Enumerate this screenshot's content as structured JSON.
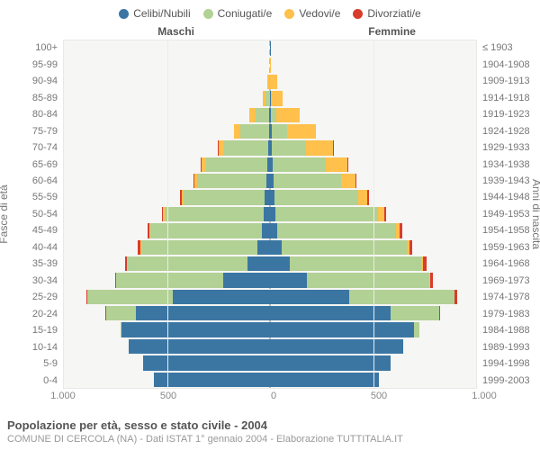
{
  "legend": [
    {
      "label": "Celibi/Nubili",
      "color": "#3b76a3"
    },
    {
      "label": "Coniugati/e",
      "color": "#b2d194"
    },
    {
      "label": "Vedovi/e",
      "color": "#ffc04c"
    },
    {
      "label": "Divorziati/e",
      "color": "#d73c2c"
    }
  ],
  "header_male": "Maschi",
  "header_female": "Femmine",
  "left_axis_title": "Fasce di età",
  "right_axis_title": "Anni di nascita",
  "footer_title": "Popolazione per età, sesso e stato civile - 2004",
  "footer_sub": "COMUNE DI CERCOLA (NA) - Dati ISTAT 1° gennaio 2004 - Elaborazione TUTTITALIA.IT",
  "colors": {
    "plot_bg": "#f6f6f4",
    "grid": "#ececea",
    "center": "#bdbdbd",
    "celibi": "#3b76a3",
    "coniugati": "#b2d194",
    "vedovi": "#ffc04c",
    "divorziati": "#d73c2c"
  },
  "x_max": 1000,
  "x_ticks": [
    1000,
    500,
    0,
    500,
    1000
  ],
  "x_tick_labels": [
    "1.000",
    "500",
    "0",
    "500",
    "1.000"
  ],
  "age_labels": [
    "100+",
    "95-99",
    "90-94",
    "85-89",
    "80-84",
    "75-79",
    "70-74",
    "65-69",
    "60-64",
    "55-59",
    "50-54",
    "45-49",
    "40-44",
    "35-39",
    "30-34",
    "25-29",
    "20-24",
    "15-19",
    "10-14",
    "5-9",
    "0-4"
  ],
  "year_labels": [
    "≤ 1903",
    "1904-1908",
    "1909-1913",
    "1914-1918",
    "1919-1923",
    "1924-1928",
    "1929-1933",
    "1934-1938",
    "1939-1943",
    "1944-1948",
    "1949-1953",
    "1954-1958",
    "1959-1963",
    "1964-1968",
    "1969-1973",
    "1974-1978",
    "1979-1983",
    "1984-1988",
    "1989-1993",
    "1994-1998",
    "1999-2003"
  ],
  "male": [
    {
      "c": 0,
      "m": 0,
      "w": 0,
      "d": 0
    },
    {
      "c": 2,
      "m": 0,
      "w": 0,
      "d": 0
    },
    {
      "c": 0,
      "m": 5,
      "w": 10,
      "d": 0
    },
    {
      "c": 0,
      "m": 20,
      "w": 15,
      "d": 0
    },
    {
      "c": 5,
      "m": 65,
      "w": 30,
      "d": 0
    },
    {
      "c": 5,
      "m": 140,
      "w": 30,
      "d": 0
    },
    {
      "c": 8,
      "m": 215,
      "w": 25,
      "d": 5
    },
    {
      "c": 12,
      "m": 300,
      "w": 20,
      "d": 5
    },
    {
      "c": 18,
      "m": 335,
      "w": 12,
      "d": 5
    },
    {
      "c": 25,
      "m": 395,
      "w": 10,
      "d": 8
    },
    {
      "c": 30,
      "m": 480,
      "w": 8,
      "d": 8
    },
    {
      "c": 40,
      "m": 540,
      "w": 5,
      "d": 10
    },
    {
      "c": 60,
      "m": 565,
      "w": 5,
      "d": 10
    },
    {
      "c": 110,
      "m": 580,
      "w": 3,
      "d": 10
    },
    {
      "c": 225,
      "m": 520,
      "w": 0,
      "d": 8
    },
    {
      "c": 470,
      "m": 415,
      "w": 0,
      "d": 8
    },
    {
      "c": 650,
      "m": 145,
      "w": 0,
      "d": 3
    },
    {
      "c": 720,
      "m": 5,
      "w": 0,
      "d": 0
    },
    {
      "c": 685,
      "m": 0,
      "w": 0,
      "d": 0
    },
    {
      "c": 615,
      "m": 0,
      "w": 0,
      "d": 0
    },
    {
      "c": 565,
      "m": 0,
      "w": 0,
      "d": 0
    }
  ],
  "female": [
    {
      "c": 2,
      "m": 0,
      "w": 0,
      "d": 0
    },
    {
      "c": 0,
      "m": 0,
      "w": 5,
      "d": 0
    },
    {
      "c": 2,
      "m": 0,
      "w": 35,
      "d": 0
    },
    {
      "c": 3,
      "m": 2,
      "w": 55,
      "d": 0
    },
    {
      "c": 5,
      "m": 25,
      "w": 115,
      "d": 0
    },
    {
      "c": 8,
      "m": 75,
      "w": 140,
      "d": 0
    },
    {
      "c": 10,
      "m": 165,
      "w": 130,
      "d": 2
    },
    {
      "c": 15,
      "m": 255,
      "w": 105,
      "d": 3
    },
    {
      "c": 18,
      "m": 325,
      "w": 70,
      "d": 5
    },
    {
      "c": 22,
      "m": 405,
      "w": 45,
      "d": 8
    },
    {
      "c": 25,
      "m": 500,
      "w": 30,
      "d": 8
    },
    {
      "c": 35,
      "m": 575,
      "w": 20,
      "d": 10
    },
    {
      "c": 55,
      "m": 610,
      "w": 12,
      "d": 12
    },
    {
      "c": 95,
      "m": 640,
      "w": 8,
      "d": 15
    },
    {
      "c": 180,
      "m": 595,
      "w": 3,
      "d": 12
    },
    {
      "c": 385,
      "m": 510,
      "w": 2,
      "d": 10
    },
    {
      "c": 585,
      "m": 235,
      "w": 0,
      "d": 5
    },
    {
      "c": 700,
      "m": 25,
      "w": 0,
      "d": 0
    },
    {
      "c": 648,
      "m": 0,
      "w": 0,
      "d": 0
    },
    {
      "c": 585,
      "m": 0,
      "w": 0,
      "d": 0
    },
    {
      "c": 528,
      "m": 0,
      "w": 0,
      "d": 0
    }
  ]
}
